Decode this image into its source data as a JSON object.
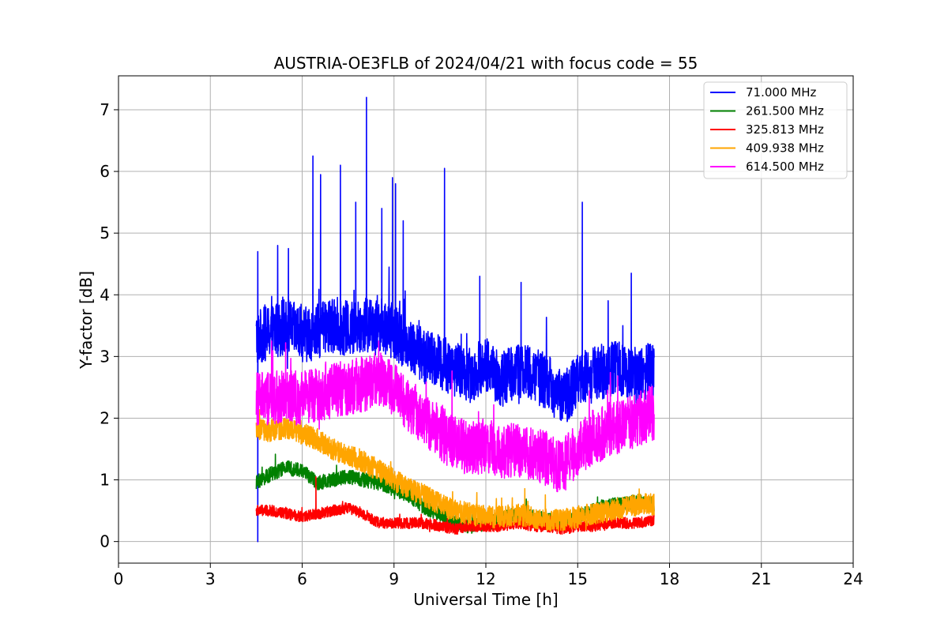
{
  "chart_data": {
    "type": "line",
    "title": "AUSTRIA-OE3FLB of 2024/04/21 with focus code = 55",
    "xlabel": "Universal Time [h]",
    "ylabel": "Y-factor [dB]",
    "xlim": [
      0,
      24
    ],
    "ylim": [
      -0.35,
      7.55
    ],
    "xticks": [
      0,
      3,
      6,
      9,
      12,
      15,
      18,
      21,
      24
    ],
    "yticks": [
      0,
      1,
      2,
      3,
      4,
      5,
      6,
      7
    ],
    "grid": true,
    "legend_position": "top-right",
    "series": [
      {
        "name": " 71.000 MHz",
        "color": "#0000ff",
        "x": [
          4.5,
          5.0,
          5.5,
          6.0,
          6.5,
          7.0,
          7.5,
          8.0,
          8.5,
          9.0,
          9.5,
          10.0,
          10.5,
          11.0,
          11.5,
          12.0,
          12.5,
          13.0,
          13.5,
          14.0,
          14.5,
          15.0,
          15.5,
          16.0,
          16.5,
          17.0,
          17.5
        ],
        "y": [
          3.3,
          3.4,
          3.5,
          3.35,
          3.4,
          3.5,
          3.45,
          3.5,
          3.55,
          3.4,
          3.2,
          3.0,
          2.9,
          2.8,
          2.7,
          2.9,
          2.6,
          2.8,
          2.7,
          2.6,
          2.3,
          2.6,
          2.7,
          2.8,
          2.8,
          2.7,
          2.8
        ],
        "peaks": [
          [
            4.55,
            4.7
          ],
          [
            5.2,
            4.8
          ],
          [
            5.55,
            4.75
          ],
          [
            6.35,
            6.25
          ],
          [
            6.6,
            5.95
          ],
          [
            7.25,
            6.1
          ],
          [
            7.75,
            5.5
          ],
          [
            8.1,
            7.2
          ],
          [
            8.6,
            5.4
          ],
          [
            8.95,
            5.9
          ],
          [
            9.05,
            5.8
          ],
          [
            9.3,
            5.2
          ],
          [
            10.65,
            6.05
          ],
          [
            11.8,
            4.3
          ],
          [
            13.15,
            4.2
          ],
          [
            15.15,
            5.5
          ],
          [
            16.75,
            4.35
          ],
          [
            4.55,
            0.0
          ]
        ],
        "amplitude": 0.45
      },
      {
        "name": " 261.500 MHz",
        "color": "#008000",
        "x": [
          4.5,
          5.0,
          5.5,
          6.0,
          6.5,
          7.0,
          7.5,
          8.0,
          8.5,
          9.0,
          9.5,
          10.0,
          10.5,
          11.0,
          11.5,
          12.0,
          12.5,
          13.0,
          13.5,
          14.0,
          14.5,
          15.0,
          15.5,
          16.0,
          16.5,
          17.0,
          17.5
        ],
        "y": [
          0.95,
          1.1,
          1.2,
          1.15,
          0.95,
          1.0,
          1.05,
          1.0,
          0.95,
          0.85,
          0.75,
          0.55,
          0.45,
          0.3,
          0.25,
          0.3,
          0.35,
          0.45,
          0.4,
          0.35,
          0.3,
          0.4,
          0.5,
          0.6,
          0.6,
          0.65,
          0.6
        ],
        "peaks": [],
        "amplitude": 0.12
      },
      {
        "name": " 325.813 MHz",
        "color": "#ff0000",
        "x": [
          4.5,
          5.0,
          5.5,
          6.0,
          6.5,
          7.0,
          7.5,
          8.0,
          8.5,
          9.0,
          9.5,
          10.0,
          10.5,
          11.0,
          11.5,
          12.0,
          12.5,
          13.0,
          13.5,
          14.0,
          14.5,
          15.0,
          15.5,
          16.0,
          16.5,
          17.0,
          17.5
        ],
        "y": [
          0.5,
          0.5,
          0.45,
          0.4,
          0.45,
          0.5,
          0.55,
          0.45,
          0.3,
          0.3,
          0.3,
          0.3,
          0.25,
          0.2,
          0.25,
          0.25,
          0.25,
          0.3,
          0.25,
          0.25,
          0.2,
          0.25,
          0.25,
          0.3,
          0.3,
          0.3,
          0.35
        ],
        "peaks": [
          [
            6.45,
            1.05
          ]
        ],
        "amplitude": 0.09
      },
      {
        "name": " 409.938 MHz",
        "color": "#ffa500",
        "x": [
          4.5,
          5.0,
          5.5,
          6.0,
          6.5,
          7.0,
          7.5,
          8.0,
          8.5,
          9.0,
          9.5,
          10.0,
          10.5,
          11.0,
          11.5,
          12.0,
          12.5,
          13.0,
          13.5,
          14.0,
          14.5,
          15.0,
          15.5,
          16.0,
          16.5,
          17.0,
          17.5
        ],
        "y": [
          1.8,
          1.8,
          1.85,
          1.75,
          1.65,
          1.5,
          1.4,
          1.3,
          1.15,
          1.0,
          0.85,
          0.75,
          0.6,
          0.5,
          0.45,
          0.4,
          0.4,
          0.45,
          0.4,
          0.35,
          0.35,
          0.4,
          0.45,
          0.5,
          0.55,
          0.6,
          0.6
        ],
        "peaks": [],
        "amplitude": 0.18
      },
      {
        "name": " 614.500 MHz",
        "color": "#ff00ff",
        "x": [
          4.5,
          5.0,
          5.5,
          6.0,
          6.5,
          7.0,
          7.5,
          8.0,
          8.5,
          9.0,
          9.5,
          10.0,
          10.5,
          11.0,
          11.5,
          12.0,
          12.5,
          13.0,
          13.5,
          14.0,
          14.5,
          15.0,
          15.5,
          16.0,
          16.5,
          17.0,
          17.5
        ],
        "y": [
          2.3,
          2.3,
          2.4,
          2.3,
          2.4,
          2.45,
          2.5,
          2.55,
          2.65,
          2.45,
          2.2,
          2.0,
          1.75,
          1.6,
          1.5,
          1.55,
          1.45,
          1.5,
          1.4,
          1.35,
          1.2,
          1.5,
          1.7,
          1.8,
          1.9,
          2.0,
          2.1
        ],
        "peaks": [
          [
            5.0,
            3.25
          ],
          [
            8.5,
            3.25
          ]
        ],
        "amplitude": 0.45
      }
    ]
  }
}
